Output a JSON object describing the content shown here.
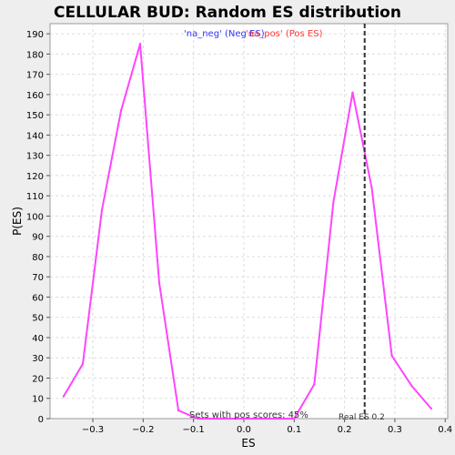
{
  "chart_data": {
    "type": "line",
    "title": "CELLULAR BUD: Random ES distribution",
    "xlabel": "ES",
    "ylabel": "P(ES)",
    "xlim": [
      -0.385,
      0.405
    ],
    "ylim": [
      0,
      195
    ],
    "x_ticks": [
      -0.3,
      -0.2,
      -0.1,
      0.0,
      0.1,
      0.2,
      0.3,
      0.4
    ],
    "x_tick_labels": [
      "−0.3",
      "−0.2",
      "−0.1",
      "0.0",
      "0.1",
      "0.2",
      "0.3",
      "0.4"
    ],
    "y_ticks": [
      0,
      10,
      20,
      30,
      40,
      50,
      60,
      70,
      80,
      90,
      100,
      110,
      120,
      130,
      140,
      150,
      160,
      170,
      180,
      190
    ],
    "grid": true,
    "legend": {
      "placement": "top",
      "entries": [
        {
          "label": "'na_neg' (Neg ES)",
          "color": "#3333ff"
        },
        {
          "label": "'na_pos' (Pos ES)",
          "color": "#ff3333"
        }
      ]
    },
    "series": [
      {
        "color": "#ff44ff",
        "x": [
          -0.358,
          -0.32,
          -0.282,
          -0.244,
          -0.206,
          -0.168,
          -0.13,
          -0.092,
          0.1,
          0.14,
          0.178,
          0.216,
          0.254,
          0.294,
          0.334,
          0.372
        ],
        "y": [
          11,
          27,
          103,
          152,
          185,
          67,
          4,
          0,
          0,
          17,
          107,
          161,
          114,
          31,
          16,
          5
        ]
      }
    ],
    "vline": {
      "x": 0.24,
      "style": "dashed",
      "color": "#333333"
    },
    "annotations": {
      "pos_scores": "Sets with pos scores: 45%",
      "real_es": "Real ES 0.2"
    }
  }
}
